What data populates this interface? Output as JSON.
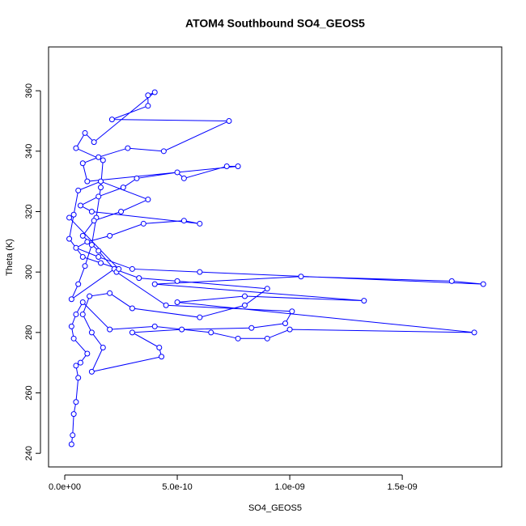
{
  "chart_data": {
    "type": "line",
    "title": "ATOM4 Southbound SO4_GEOS5",
    "x_label": "SO4_GEOS5",
    "y_label": "Theta (K)",
    "xlim": [
      -7.2e-11,
      1.942e-09
    ],
    "ylim": [
      235.5,
      374.5
    ],
    "xticks": [
      {
        "value": 0,
        "label": "0.0e+00"
      },
      {
        "value": 5e-10,
        "label": "5.0e-10"
      },
      {
        "value": 1e-09,
        "label": "1.0e-09"
      },
      {
        "value": 1.5e-09,
        "label": "1.5e-09"
      }
    ],
    "yticks": [
      240,
      260,
      280,
      300,
      320,
      340,
      360
    ],
    "grid": false,
    "markers": true,
    "series": [
      {
        "color": "#0000ff",
        "x": [
          3e-11,
          3.5e-11,
          4e-11,
          5e-11,
          6e-11,
          5e-11,
          7e-11,
          1e-10,
          4e-11,
          3e-11,
          5e-11,
          8e-11,
          2e-10,
          4e-10,
          6.5e-10,
          7.7e-10,
          9e-10,
          1e-09,
          1.82e-09,
          5e-10,
          8e-10,
          1.33e-09,
          4e-10,
          1.05e-09,
          1.72e-09,
          1.86e-09,
          6e-10,
          3e-10,
          1.5e-10,
          5e-11,
          1e-10,
          2e-10,
          3.5e-10,
          5.3e-10,
          6e-10,
          1.2e-10,
          7e-11,
          1.5e-10,
          2.6e-10,
          3.2e-10,
          5e-10,
          5.3e-10,
          7.2e-10,
          7.7e-10,
          1e-10,
          8e-11,
          1.5e-10,
          2.8e-10,
          4.4e-10,
          7.3e-10,
          2.1e-10,
          3.7e-10,
          3.7e-10,
          4e-10,
          1.3e-10,
          9e-11,
          5e-11,
          1.7e-10,
          1.6e-10,
          1.4e-10,
          1.2e-10,
          9e-11,
          6e-11,
          3e-11,
          2.2e-10,
          3.3e-10,
          5e-10,
          9e-10,
          8e-10,
          6e-10,
          3e-10,
          2e-10,
          1.1e-10,
          8e-11,
          1.2e-10,
          1.7e-10,
          1.2e-10,
          4.3e-10,
          4.2e-10,
          3e-10,
          5.2e-10,
          8.3e-10,
          9.8e-10,
          1.01e-09,
          4.5e-10,
          2.3e-10,
          1.5e-10,
          8e-11,
          1.3e-10,
          2.5e-10,
          3.7e-10,
          1.6e-10,
          6e-11,
          4e-11,
          2e-11,
          8e-11,
          1.6e-10,
          2.4e-10,
          2e-11
        ],
        "values": [
          243,
          246,
          253,
          257,
          265,
          269,
          270,
          273,
          278,
          282,
          286,
          290,
          281,
          282,
          280,
          278,
          278,
          281,
          280,
          290,
          292,
          290.5,
          296,
          298.5,
          297,
          296,
          300,
          301,
          305,
          308,
          310,
          312,
          316,
          317,
          316,
          320,
          322,
          325,
          328,
          331,
          333,
          331,
          335,
          335,
          330,
          336,
          338,
          341,
          340,
          350,
          350.5,
          355,
          358.5,
          359.5,
          343,
          346,
          341,
          337,
          328,
          318,
          309,
          302,
          296,
          291,
          301,
          298,
          297,
          294.5,
          289,
          285,
          288,
          293,
          292,
          286,
          280,
          275,
          267,
          272,
          275,
          280,
          281,
          281.5,
          283,
          287,
          289,
          300,
          307,
          312,
          317,
          320,
          324,
          330,
          327,
          319,
          311,
          305,
          303,
          301,
          318
        ]
      }
    ]
  }
}
